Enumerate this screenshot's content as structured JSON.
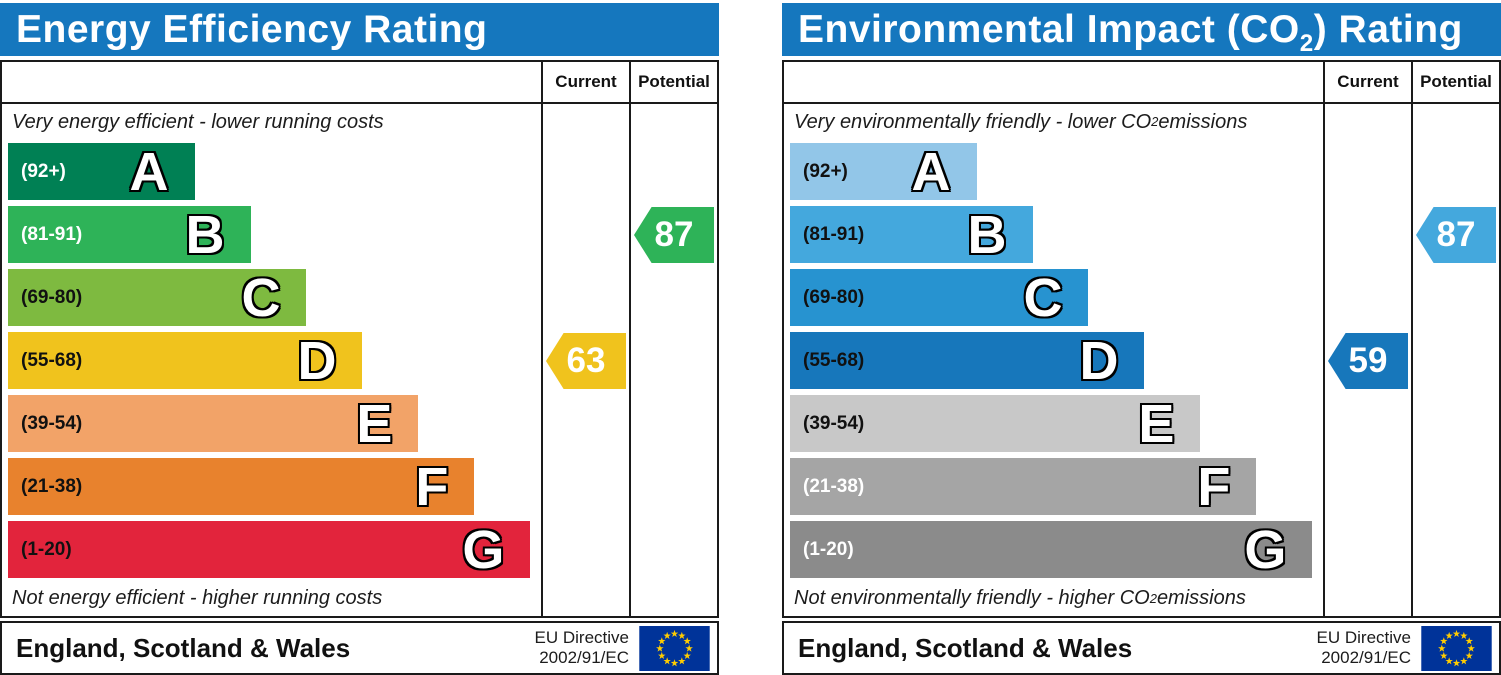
{
  "colors": {
    "header_background": "#1577be",
    "header_text": "#ffffff",
    "border": "#1a1a1a",
    "flag_background": "#003399",
    "flag_stars": "#ffcc00"
  },
  "charts": [
    {
      "title_parts": [
        {
          "text": "Energy Efficiency Rating"
        }
      ],
      "columns": {
        "current": "Current",
        "potential": "Potential"
      },
      "top_note_parts": [
        {
          "text": "Very energy efficient - lower running costs"
        }
      ],
      "bottom_note_parts": [
        {
          "text": "Not energy efficient - higher running costs"
        }
      ],
      "bands": [
        {
          "letter": "A",
          "range": "(92+)",
          "color": "#008054",
          "width_pct": 35,
          "label_color": "#ffffff"
        },
        {
          "letter": "B",
          "range": "(81-91)",
          "color": "#2eb358",
          "width_pct": 45.5,
          "label_color": "#ffffff"
        },
        {
          "letter": "C",
          "range": "(69-80)",
          "color": "#7eba40",
          "width_pct": 56,
          "label_color": "#111111"
        },
        {
          "letter": "D",
          "range": "(55-68)",
          "color": "#f0c31d",
          "width_pct": 66.5,
          "label_color": "#111111"
        },
        {
          "letter": "E",
          "range": "(39-54)",
          "color": "#f2a368",
          "width_pct": 77,
          "label_color": "#111111"
        },
        {
          "letter": "F",
          "range": "(21-38)",
          "color": "#e8822d",
          "width_pct": 87.5,
          "label_color": "#111111"
        },
        {
          "letter": "G",
          "range": "(1-20)",
          "color": "#e2243c",
          "width_pct": 98,
          "label_color": "#111111"
        }
      ],
      "current": {
        "value": "63",
        "band": "D",
        "color": "#f0c31d"
      },
      "potential": {
        "value": "87",
        "band": "B",
        "color": "#2eb358"
      },
      "footer": {
        "region": "England, Scotland & Wales",
        "directive_line1": "EU Directive",
        "directive_line2": "2002/91/EC"
      }
    },
    {
      "title_parts": [
        {
          "text": "Environmental Impact (CO"
        },
        {
          "text": "2",
          "sub": true
        },
        {
          "text": ") Rating"
        }
      ],
      "columns": {
        "current": "Current",
        "potential": "Potential"
      },
      "top_note_parts": [
        {
          "text": "Very environmentally friendly - lower CO"
        },
        {
          "text": "2",
          "sub": true
        },
        {
          "text": " emissions"
        }
      ],
      "bottom_note_parts": [
        {
          "text": "Not environmentally friendly - higher CO"
        },
        {
          "text": "2",
          "sub": true
        },
        {
          "text": " emissions"
        }
      ],
      "bands": [
        {
          "letter": "A",
          "range": "(92+)",
          "color": "#92c6e8",
          "width_pct": 35,
          "label_color": "#111111"
        },
        {
          "letter": "B",
          "range": "(81-91)",
          "color": "#44a8dd",
          "width_pct": 45.5,
          "label_color": "#111111"
        },
        {
          "letter": "C",
          "range": "(69-80)",
          "color": "#2793d0",
          "width_pct": 56,
          "label_color": "#111111"
        },
        {
          "letter": "D",
          "range": "(55-68)",
          "color": "#1777bb",
          "width_pct": 66.5,
          "label_color": "#111111"
        },
        {
          "letter": "E",
          "range": "(39-54)",
          "color": "#c8c8c8",
          "width_pct": 77,
          "label_color": "#111111"
        },
        {
          "letter": "F",
          "range": "(21-38)",
          "color": "#a5a5a5",
          "width_pct": 87.5,
          "label_color": "#ffffff"
        },
        {
          "letter": "G",
          "range": "(1-20)",
          "color": "#8b8b8b",
          "width_pct": 98,
          "label_color": "#ffffff"
        }
      ],
      "current": {
        "value": "59",
        "band": "D",
        "color": "#1777bb"
      },
      "potential": {
        "value": "87",
        "band": "B",
        "color": "#44a8dd"
      },
      "footer": {
        "region": "England, Scotland & Wales",
        "directive_line1": "EU Directive",
        "directive_line2": "2002/91/EC"
      }
    }
  ],
  "chart_data": [
    {
      "type": "bar",
      "title": "Energy Efficiency Rating",
      "categories": [
        "A",
        "B",
        "C",
        "D",
        "E",
        "F",
        "G"
      ],
      "band_ranges": [
        "92+",
        "81-91",
        "69-80",
        "55-68",
        "39-54",
        "21-38",
        "1-20"
      ],
      "bar_lengths_relative": [
        0.35,
        0.455,
        0.56,
        0.665,
        0.77,
        0.875,
        0.98
      ],
      "band_colors": [
        "#008054",
        "#2eb358",
        "#7eba40",
        "#f0c31d",
        "#f2a368",
        "#e8822d",
        "#e2243c"
      ],
      "columns": [
        "Current",
        "Potential"
      ],
      "current": {
        "value": 63,
        "band": "D"
      },
      "potential": {
        "value": 87,
        "band": "B"
      },
      "note_top": "Very energy efficient - lower running costs",
      "note_bottom": "Not energy efficient - higher running costs",
      "region": "England, Scotland & Wales",
      "directive": "EU Directive 2002/91/EC"
    },
    {
      "type": "bar",
      "title": "Environmental Impact (CO2) Rating",
      "categories": [
        "A",
        "B",
        "C",
        "D",
        "E",
        "F",
        "G"
      ],
      "band_ranges": [
        "92+",
        "81-91",
        "69-80",
        "55-68",
        "39-54",
        "21-38",
        "1-20"
      ],
      "bar_lengths_relative": [
        0.35,
        0.455,
        0.56,
        0.665,
        0.77,
        0.875,
        0.98
      ],
      "band_colors": [
        "#92c6e8",
        "#44a8dd",
        "#2793d0",
        "#1777bb",
        "#c8c8c8",
        "#a5a5a5",
        "#8b8b8b"
      ],
      "columns": [
        "Current",
        "Potential"
      ],
      "current": {
        "value": 59,
        "band": "D"
      },
      "potential": {
        "value": 87,
        "band": "B"
      },
      "note_top": "Very environmentally friendly - lower CO2 emissions",
      "note_bottom": "Not environmentally friendly - higher CO2 emissions",
      "region": "England, Scotland & Wales",
      "directive": "EU Directive 2002/91/EC"
    }
  ]
}
